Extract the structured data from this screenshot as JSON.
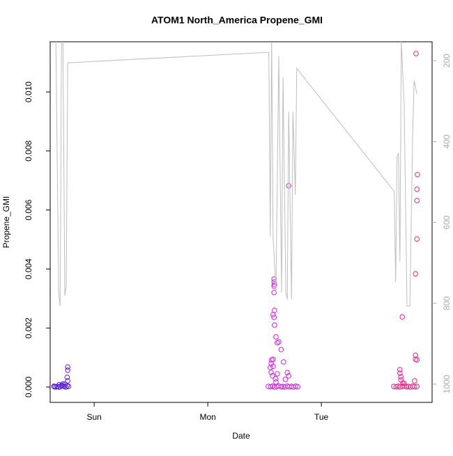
{
  "chart_data": {
    "type": "scatter",
    "title": "ATOM1 North_America Propene_GMI",
    "xlabel": "Date",
    "ylabel": "Propene_GMI",
    "xlim": [
      -9.3,
      71.4
    ],
    "xticks": [
      {
        "value": 0,
        "label": "Sun"
      },
      {
        "value": 24,
        "label": "Mon"
      },
      {
        "value": 48,
        "label": "Tue"
      }
    ],
    "ylim": [
      -0.00052,
      0.0117
    ],
    "yticks": [
      {
        "value": 0,
        "label": "0.000"
      },
      {
        "value": 0.002,
        "label": "0.002"
      },
      {
        "value": 0.004,
        "label": "0.004"
      },
      {
        "value": 0.006,
        "label": "0.006"
      },
      {
        "value": 0.008,
        "label": "0.008"
      },
      {
        "value": 0.01,
        "label": "0.010"
      }
    ],
    "y2lim": [
      1045,
      153
    ],
    "y2ticks": [
      200,
      400,
      600,
      800,
      1000
    ],
    "series": [
      {
        "color": "#5b1de6",
        "x": [
          -8.5,
          -8.4,
          -8.1,
          -7.8,
          -7.5,
          -7.2,
          -6.9,
          -6.6,
          -6.3,
          -6.0,
          -5.7,
          -5.4,
          -5.6,
          -5.6,
          -5.7,
          -5.6,
          -6.6,
          -7.4,
          -6.9,
          -6.2
        ],
        "values": [
          3e-05,
          1e-05,
          0,
          2e-05,
          0,
          1e-05,
          5e-05,
          3e-05,
          2e-05,
          0,
          4e-05,
          2e-05,
          0.00068,
          0.00057,
          0.00033,
          0.00021,
          0.0001,
          8e-05,
          6e-05,
          0.0001
        ]
      },
      {
        "color": "#d81ee6",
        "x": [
          36.8,
          37.3,
          37.7,
          38.1,
          38.6,
          39.0,
          39.5,
          39.9,
          40.3,
          40.8,
          41.2,
          41.7,
          42.1,
          42.6,
          43.0,
          38.0,
          38.0,
          38.1,
          38.0,
          38.0,
          38.1,
          37.8,
          38.0,
          38.1,
          38.4,
          38.7,
          39.0,
          37.8,
          37.5,
          37.4,
          37.2,
          37.8,
          37.4,
          37.7,
          39.5,
          40.0,
          41.1,
          40.8,
          41.1,
          40.4,
          38.7,
          38.4,
          38.3
        ],
        "values": [
          2e-05,
          1e-05,
          3e-05,
          0,
          2e-05,
          4e-05,
          1e-05,
          2e-05,
          0,
          3e-05,
          1e-05,
          2e-05,
          0,
          3e-05,
          1e-05,
          0.00366,
          0.00356,
          0.00347,
          0.00342,
          0.0032,
          0.0026,
          0.00245,
          0.00236,
          0.0021,
          0.0017,
          0.0015,
          0.00153,
          0.00094,
          0.00092,
          0.0008,
          0.00066,
          0.0007,
          0.0005,
          0.00038,
          0.00127,
          0.00085,
          0.00682,
          0.00049,
          0.00038,
          0.00026,
          0.00045,
          0.00017,
          0.00028
        ]
      },
      {
        "color": "#f0208a",
        "x": [
          63.3,
          63.8,
          64.2,
          64.6,
          65.1,
          65.5,
          66.0,
          66.4,
          66.8,
          67.3,
          67.7,
          68.2,
          68.0,
          68.3,
          68.2,
          68.2,
          68.2,
          67.9,
          65.1,
          67.9,
          67.9,
          68.2,
          64.6,
          64.6,
          64.8,
          64.8,
          67.7,
          65.2,
          65.5
        ],
        "values": [
          2e-05,
          1e-05,
          3e-05,
          0,
          2e-05,
          4e-05,
          1e-05,
          2e-05,
          0,
          3e-05,
          1e-05,
          2e-05,
          0.0113,
          0.0072,
          0.0067,
          0.00632,
          0.00502,
          0.00384,
          0.00238,
          0.00108,
          0.00094,
          0.00092,
          0.00059,
          0.00047,
          0.00035,
          0.00024,
          0.00021,
          0.00014,
          0.00012
        ]
      },
      {
        "type": "line",
        "axis": "y2",
        "color": "#bdbdbd",
        "x": [
          -8.1,
          -7.5,
          -7.2,
          -6.9,
          -6.6,
          -6.2,
          -5.9,
          -5.6,
          36.9,
          37.2,
          37.5,
          37.8,
          38.4,
          39.0,
          39.6,
          39.9,
          40.5,
          40.8,
          41.1,
          41.7,
          42.0,
          42.5,
          42.8,
          63.4,
          63.7,
          64.0,
          64.3,
          64.6,
          64.9,
          65.5,
          66.1,
          66.7,
          67.3,
          67.6,
          68.2
        ],
        "values": [
          150,
          773,
          807,
          150,
          150,
          781,
          756,
          205,
          179,
          635,
          150,
          635,
          773,
          188,
          773,
          240,
          773,
          790,
          326,
          790,
          326,
          532,
          219,
          523,
          747,
          437,
          428,
          695,
          150,
          308,
          807,
          807,
          377,
          248,
          283
        ]
      }
    ]
  }
}
